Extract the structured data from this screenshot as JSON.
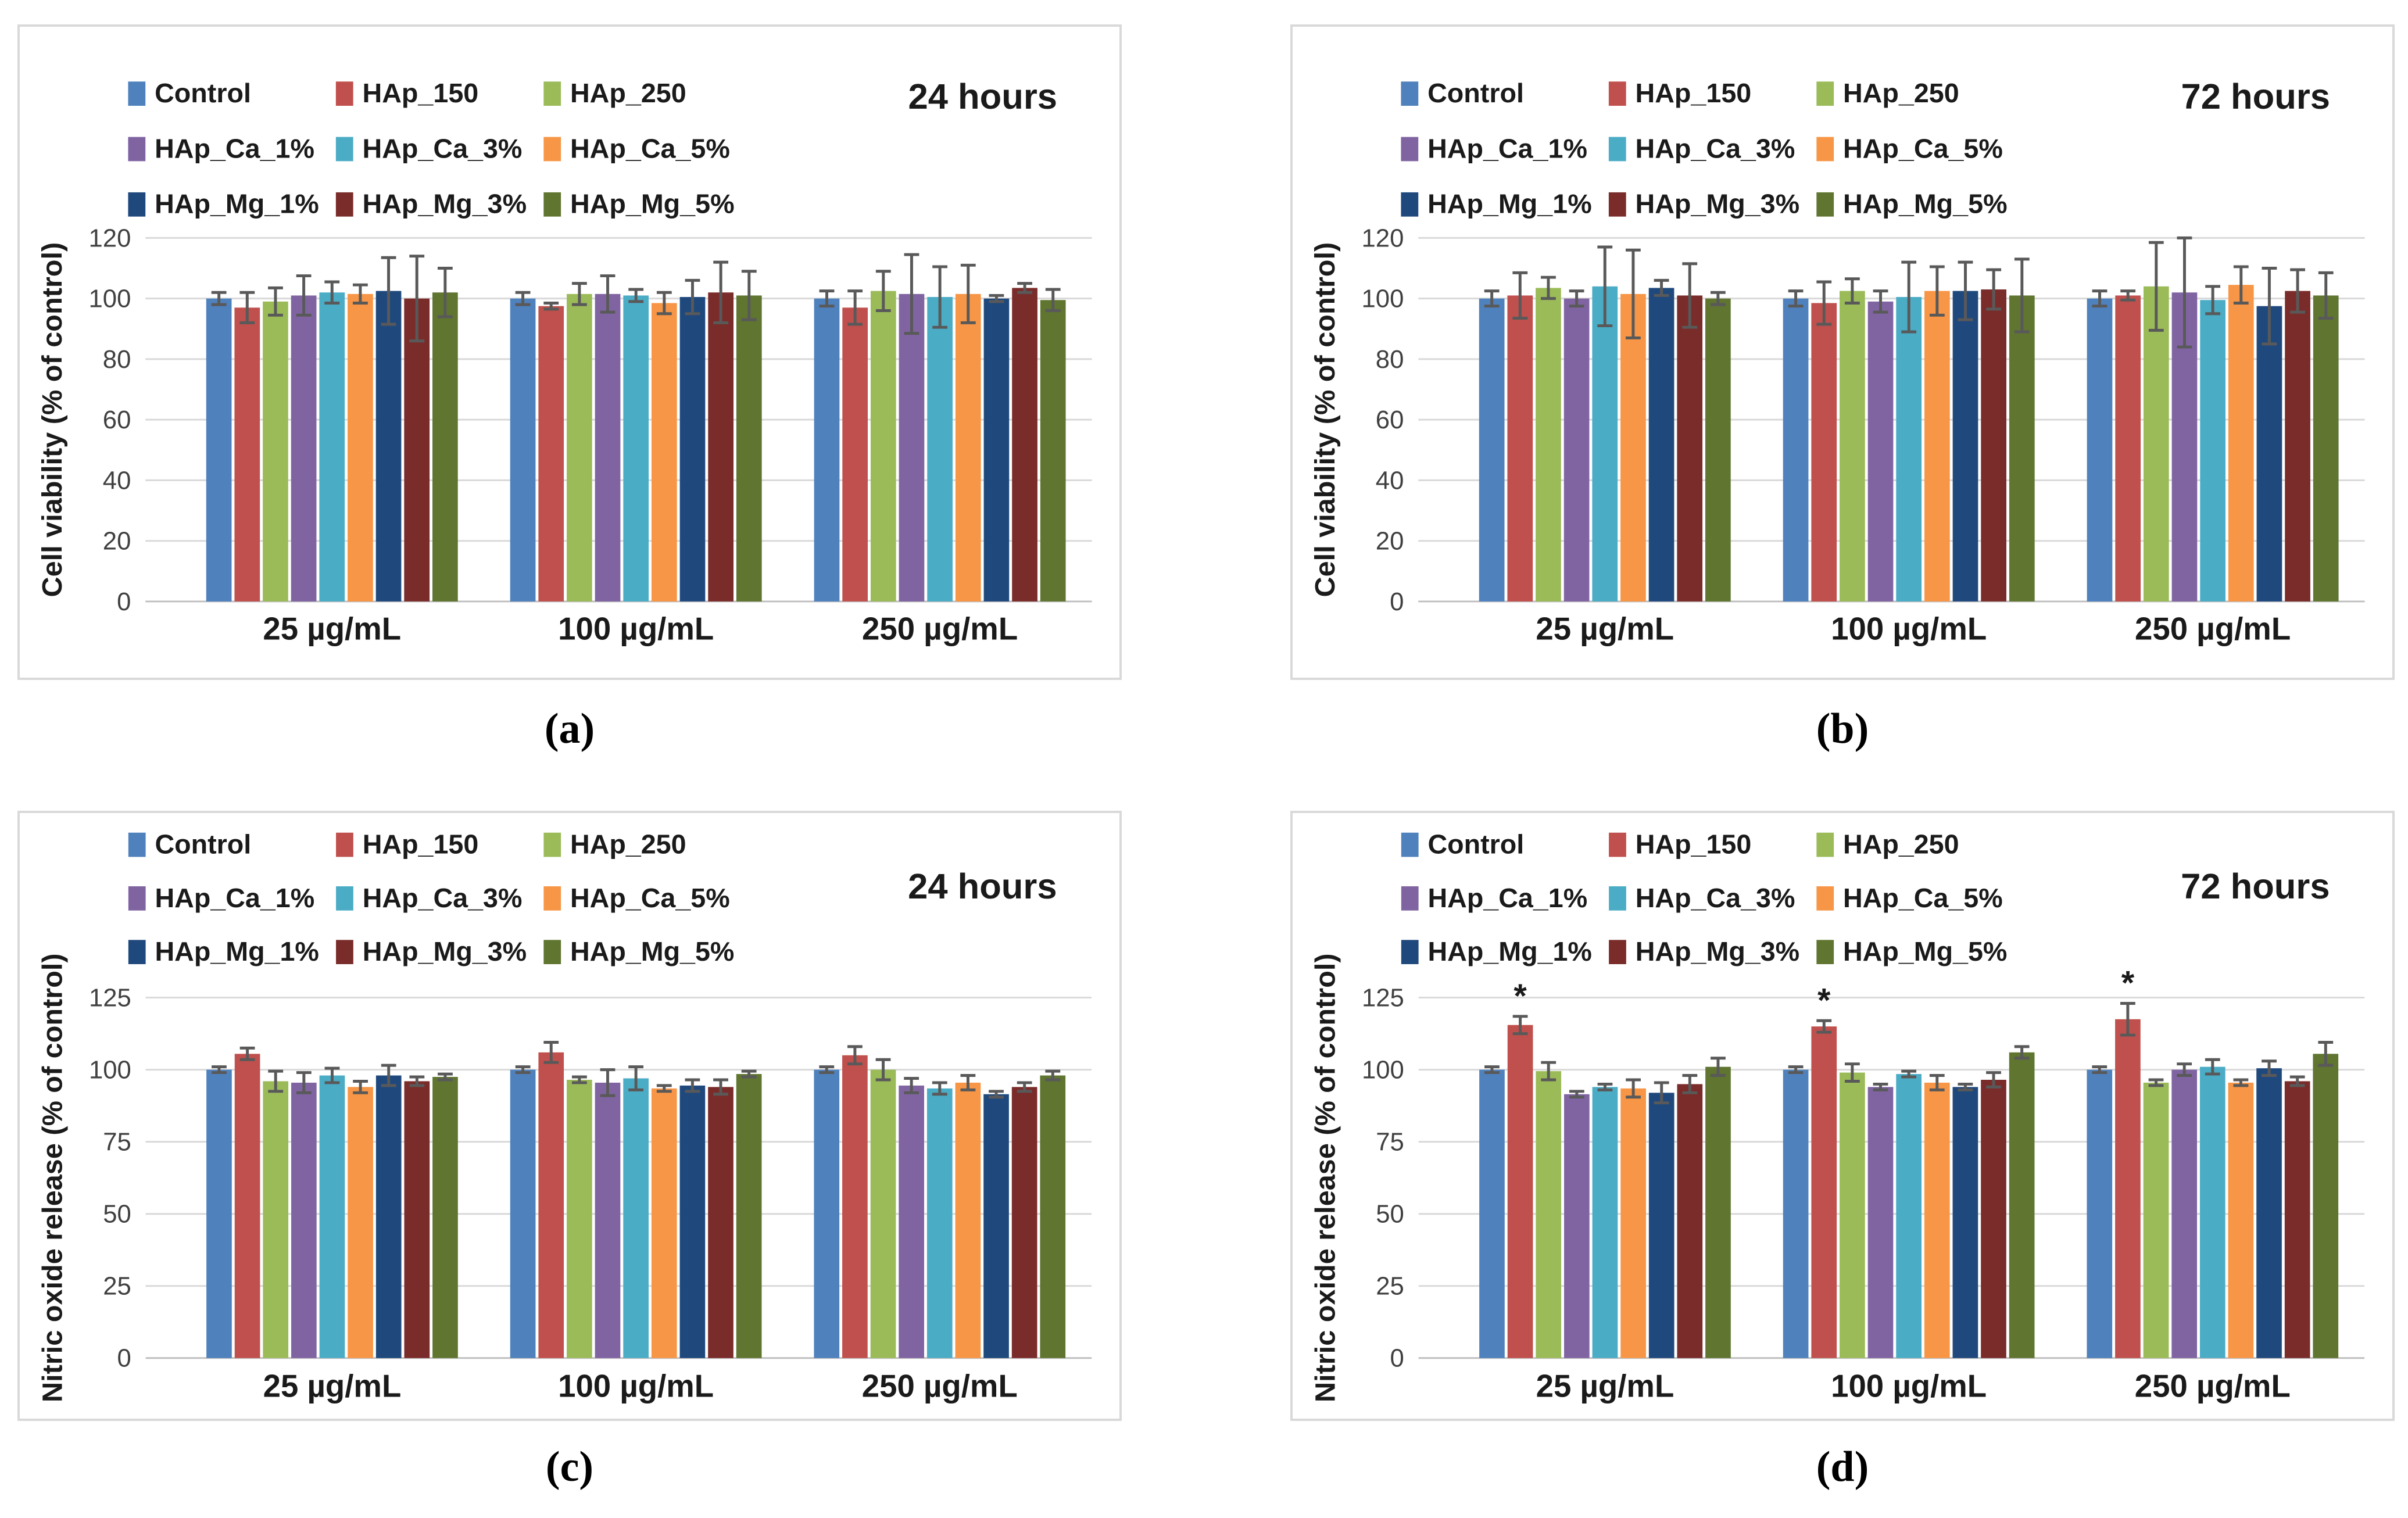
{
  "style": {
    "error_bar_color": "#595959",
    "gridline_color": "#d9d9d9",
    "axis_line_color": "#bfbfbf",
    "panel_border_color": "#d9d9d9",
    "text_color": "#1a1a1a",
    "tick_color": "#404040"
  },
  "legend": {
    "items": [
      {
        "label": "Control",
        "color": "#4F81BD"
      },
      {
        "label": "HAp_150",
        "color": "#C0504D"
      },
      {
        "label": "HAp_250",
        "color": "#9BBB59"
      },
      {
        "label": "HAp_Ca_1%",
        "color": "#8064A2"
      },
      {
        "label": "HAp_Ca_3%",
        "color": "#4BACC6"
      },
      {
        "label": "HAp_Ca_5%",
        "color": "#F79646"
      },
      {
        "label": "HAp_Mg_1%",
        "color": "#1F497D"
      },
      {
        "label": "HAp_Mg_3%",
        "color": "#7A2C2A"
      },
      {
        "label": "HAp_Mg_5%",
        "color": "#5F7530"
      }
    ]
  },
  "chart_data": [
    {
      "id": "a",
      "type": "bar",
      "caption": "(a)",
      "title": "24 hours",
      "ylabel": "Cell viability (% of control)",
      "ylim": [
        0,
        120
      ],
      "ystep": 20,
      "grid": true,
      "legend_position": "top-left",
      "categories": [
        "25 µg/mL",
        "100 µg/mL",
        "250 µg/mL"
      ],
      "series": [
        {
          "name": "Control",
          "values": [
            100,
            100,
            100
          ],
          "errors": [
            2,
            2,
            2.5
          ]
        },
        {
          "name": "HAp_150",
          "values": [
            97,
            97.5,
            97
          ],
          "errors": [
            5,
            1,
            5.5
          ]
        },
        {
          "name": "HAp_250",
          "values": [
            99,
            101.5,
            102.5
          ],
          "errors": [
            4.5,
            3.5,
            6.5
          ]
        },
        {
          "name": "HAp_Ca_1%",
          "values": [
            101,
            101.5,
            101.5
          ],
          "errors": [
            6.5,
            6,
            13
          ]
        },
        {
          "name": "HAp_Ca_3%",
          "values": [
            102,
            101,
            100.5
          ],
          "errors": [
            3.5,
            2,
            10
          ]
        },
        {
          "name": "HAp_Ca_5%",
          "values": [
            101.5,
            98.5,
            101.5
          ],
          "errors": [
            3,
            3.5,
            9.5
          ]
        },
        {
          "name": "HAp_Mg_1%",
          "values": [
            102.5,
            100.5,
            100
          ],
          "errors": [
            11,
            5.5,
            1
          ]
        },
        {
          "name": "HAp_Mg_3%",
          "values": [
            100,
            102,
            103.5
          ],
          "errors": [
            14,
            10,
            1.5
          ]
        },
        {
          "name": "HAp_Mg_5%",
          "values": [
            102,
            101,
            99.5
          ],
          "errors": [
            8,
            8,
            3.5
          ]
        }
      ]
    },
    {
      "id": "b",
      "type": "bar",
      "caption": "(b)",
      "title": "72 hours",
      "ylabel": "Cell viability (% of control)",
      "ylim": [
        0,
        120
      ],
      "ystep": 20,
      "grid": true,
      "legend_position": "top-left",
      "categories": [
        "25 µg/mL",
        "100 µg/mL",
        "250 µg/mL"
      ],
      "series": [
        {
          "name": "Control",
          "values": [
            100,
            100,
            100
          ],
          "errors": [
            2.5,
            2.5,
            2.5
          ]
        },
        {
          "name": "HAp_150",
          "values": [
            101,
            98.5,
            101
          ],
          "errors": [
            7.5,
            7,
            1.5
          ]
        },
        {
          "name": "HAp_250",
          "values": [
            103.5,
            102.5,
            104
          ],
          "errors": [
            3.5,
            4,
            14.5
          ]
        },
        {
          "name": "HAp_Ca_1%",
          "values": [
            100,
            99,
            102
          ],
          "errors": [
            2.5,
            3.5,
            18
          ]
        },
        {
          "name": "HAp_Ca_3%",
          "values": [
            104,
            100.5,
            99.5
          ],
          "errors": [
            13,
            11.5,
            4.5
          ]
        },
        {
          "name": "HAp_Ca_5%",
          "values": [
            101.5,
            102.5,
            104.5
          ],
          "errors": [
            14.5,
            8,
            6
          ]
        },
        {
          "name": "HAp_Mg_1%",
          "values": [
            103.5,
            102.5,
            97.5
          ],
          "errors": [
            2.5,
            9.5,
            12.5
          ]
        },
        {
          "name": "HAp_Mg_3%",
          "values": [
            101,
            103,
            102.5
          ],
          "errors": [
            10.5,
            6.5,
            7
          ]
        },
        {
          "name": "HAp_Mg_5%",
          "values": [
            100,
            101,
            101
          ],
          "errors": [
            2,
            12,
            7.5
          ]
        }
      ]
    },
    {
      "id": "c",
      "type": "bar",
      "caption": "(c)",
      "title": "24 hours",
      "ylabel": "Nitric oxide release (% of control)",
      "ylim": [
        0,
        125
      ],
      "ystep": 25,
      "grid": true,
      "legend_position": "top-left",
      "categories": [
        "25 µg/mL",
        "100 µg/mL",
        "250 µg/mL"
      ],
      "series": [
        {
          "name": "Control",
          "values": [
            100,
            100,
            100
          ],
          "errors": [
            1,
            1,
            1
          ]
        },
        {
          "name": "HAp_150",
          "values": [
            105.5,
            106,
            105
          ],
          "errors": [
            2,
            3.5,
            3
          ]
        },
        {
          "name": "HAp_250",
          "values": [
            96,
            96.5,
            100
          ],
          "errors": [
            3.5,
            1,
            3.5
          ]
        },
        {
          "name": "HAp_Ca_1%",
          "values": [
            95.5,
            95.5,
            94.5
          ],
          "errors": [
            3.5,
            4.5,
            2.5
          ]
        },
        {
          "name": "HAp_Ca_3%",
          "values": [
            98,
            97,
            93.5
          ],
          "errors": [
            2.5,
            4,
            2
          ]
        },
        {
          "name": "HAp_Ca_5%",
          "values": [
            94,
            93.5,
            95.5
          ],
          "errors": [
            2,
            1,
            2.5
          ]
        },
        {
          "name": "HAp_Mg_1%",
          "values": [
            98,
            94.5,
            91.5
          ],
          "errors": [
            3.5,
            2,
            1
          ]
        },
        {
          "name": "HAp_Mg_3%",
          "values": [
            96,
            94,
            94
          ],
          "errors": [
            1.5,
            2.5,
            1.5
          ]
        },
        {
          "name": "HAp_Mg_5%",
          "values": [
            97.5,
            98.5,
            98
          ],
          "errors": [
            1,
            1,
            1.5
          ]
        }
      ]
    },
    {
      "id": "d",
      "type": "bar",
      "caption": "(d)",
      "title": "72 hours",
      "ylabel": "Nitric oxide release (% of control)",
      "ylim": [
        0,
        125
      ],
      "ystep": 25,
      "grid": true,
      "legend_position": "top-left",
      "significance_marker": "*",
      "categories": [
        "25 µg/mL",
        "100 µg/mL",
        "250 µg/mL"
      ],
      "series": [
        {
          "name": "Control",
          "values": [
            100,
            100,
            100
          ],
          "errors": [
            1,
            1,
            1
          ]
        },
        {
          "name": "HAp_150",
          "values": [
            115.5,
            115,
            117.5
          ],
          "errors": [
            3,
            2,
            5.5
          ],
          "sig": [
            true,
            true,
            true
          ]
        },
        {
          "name": "HAp_250",
          "values": [
            99.5,
            99,
            95.5
          ],
          "errors": [
            3,
            3,
            1
          ]
        },
        {
          "name": "HAp_Ca_1%",
          "values": [
            91.5,
            94,
            100
          ],
          "errors": [
            1,
            1,
            2
          ]
        },
        {
          "name": "HAp_Ca_3%",
          "values": [
            94,
            98.5,
            101
          ],
          "errors": [
            1,
            1,
            2.5
          ]
        },
        {
          "name": "HAp_Ca_5%",
          "values": [
            93.5,
            95.5,
            95.5
          ],
          "errors": [
            3,
            2.5,
            1
          ]
        },
        {
          "name": "HAp_Mg_1%",
          "values": [
            92,
            94,
            100.5
          ],
          "errors": [
            3.5,
            1,
            2.5
          ]
        },
        {
          "name": "HAp_Mg_3%",
          "values": [
            95,
            96.5,
            96
          ],
          "errors": [
            3,
            2.5,
            1.5
          ]
        },
        {
          "name": "HAp_Mg_5%",
          "values": [
            101,
            106,
            105.5
          ],
          "errors": [
            3,
            2,
            4
          ]
        }
      ]
    }
  ]
}
